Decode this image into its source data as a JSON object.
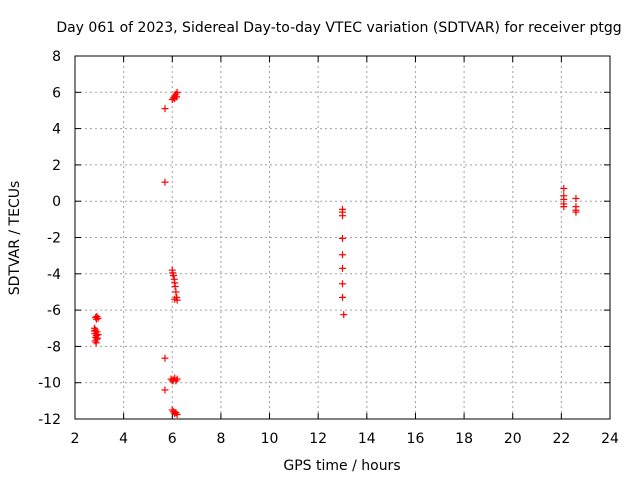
{
  "chart_data": {
    "type": "scatter",
    "title": "Day 061 of 2023, Sidereal Day-to-day VTEC variation (SDTVAR) for receiver ptgg",
    "xlabel": "GPS time / hours",
    "ylabel": "SDTVAR / TECUs",
    "xlim": [
      2,
      24
    ],
    "ylim": [
      -12,
      8
    ],
    "xticks": [
      2,
      4,
      6,
      8,
      10,
      12,
      14,
      16,
      18,
      20,
      22,
      24
    ],
    "yticks": [
      8,
      6,
      4,
      2,
      0,
      -2,
      -4,
      -6,
      -8,
      -10,
      -12
    ],
    "grid": true,
    "marker": "+",
    "color": "#ff0000",
    "series": [
      {
        "name": "SDTVAR",
        "points": [
          [
            2.85,
            -6.4
          ],
          [
            2.9,
            -6.35
          ],
          [
            2.95,
            -6.45
          ],
          [
            2.88,
            -6.5
          ],
          [
            2.8,
            -7.0
          ],
          [
            2.85,
            -7.1
          ],
          [
            2.9,
            -7.2
          ],
          [
            2.82,
            -7.3
          ],
          [
            2.88,
            -7.4
          ],
          [
            2.85,
            -7.5
          ],
          [
            2.9,
            -7.6
          ],
          [
            2.83,
            -7.7
          ],
          [
            2.87,
            -7.8
          ],
          [
            2.92,
            -7.55
          ],
          [
            2.8,
            -7.15
          ],
          [
            2.95,
            -7.35
          ],
          [
            5.7,
            5.1
          ],
          [
            5.7,
            1.05
          ],
          [
            5.7,
            -8.65
          ],
          [
            5.7,
            -10.4
          ],
          [
            6.0,
            5.6
          ],
          [
            6.05,
            5.7
          ],
          [
            6.1,
            5.8
          ],
          [
            6.15,
            5.9
          ],
          [
            6.2,
            6.0
          ],
          [
            6.1,
            5.65
          ],
          [
            6.18,
            5.75
          ],
          [
            6.0,
            -3.8
          ],
          [
            6.02,
            -3.95
          ],
          [
            6.05,
            -4.1
          ],
          [
            6.08,
            -4.3
          ],
          [
            6.1,
            -4.5
          ],
          [
            6.12,
            -4.7
          ],
          [
            6.15,
            -5.0
          ],
          [
            6.18,
            -5.3
          ],
          [
            6.2,
            -5.45
          ],
          [
            6.1,
            -5.4
          ],
          [
            5.95,
            -9.8
          ],
          [
            6.05,
            -9.85
          ],
          [
            6.1,
            -9.75
          ],
          [
            6.15,
            -9.9
          ],
          [
            6.2,
            -9.8
          ],
          [
            6.0,
            -9.9
          ],
          [
            6.0,
            -11.5
          ],
          [
            6.05,
            -11.6
          ],
          [
            6.1,
            -11.7
          ],
          [
            6.2,
            -11.75
          ],
          [
            6.15,
            -11.65
          ],
          [
            13.0,
            -0.45
          ],
          [
            13.0,
            -0.6
          ],
          [
            13.0,
            -0.8
          ],
          [
            13.0,
            -2.05
          ],
          [
            13.0,
            -2.95
          ],
          [
            13.0,
            -3.7
          ],
          [
            13.0,
            -4.55
          ],
          [
            13.0,
            -5.3
          ],
          [
            13.05,
            -6.25
          ],
          [
            22.1,
            0.7
          ],
          [
            22.1,
            0.3
          ],
          [
            22.1,
            0.1
          ],
          [
            22.1,
            -0.15
          ],
          [
            22.1,
            -0.3
          ],
          [
            22.6,
            0.15
          ],
          [
            22.6,
            -0.3
          ],
          [
            22.6,
            -0.5
          ],
          [
            22.6,
            -0.6
          ]
        ]
      }
    ]
  }
}
